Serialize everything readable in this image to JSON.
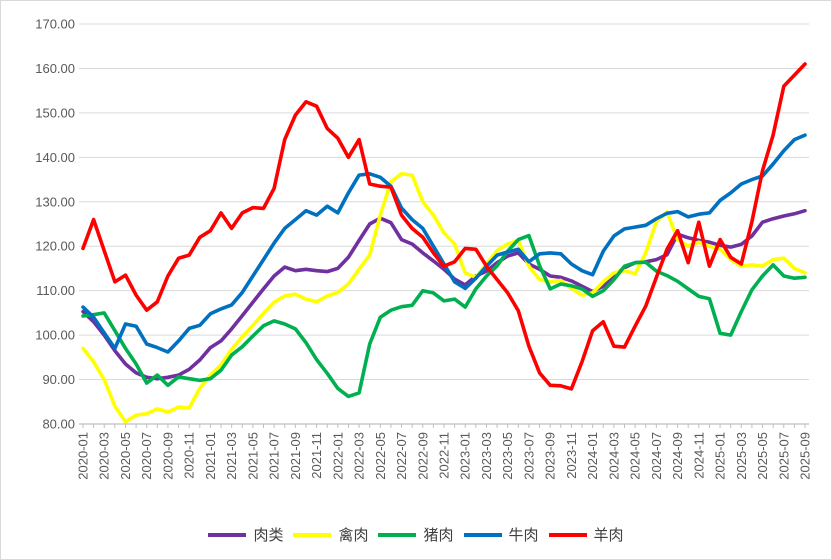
{
  "chart_data": {
    "type": "line",
    "title": "",
    "xlabel": "",
    "ylabel": "",
    "grid": true,
    "legend_position": "bottom",
    "y_min": 80,
    "y_max": 170,
    "y_step": 10,
    "y_tick_labels": [
      "170.00",
      "160.00",
      "150.00",
      "140.00",
      "130.00",
      "120.00",
      "110.00",
      "100.00",
      "90.00",
      "80.00"
    ],
    "x_label_every_n_months": 2,
    "axis_text_color": "#595959",
    "gridline_color": "#d9d9d9",
    "axis_line_color": "#bfbfbf",
    "x": [
      "2020-01",
      "2020-02",
      "2020-03",
      "2020-04",
      "2020-05",
      "2020-06",
      "2020-07",
      "2020-08",
      "2020-09",
      "2020-10",
      "2020-11",
      "2020-12",
      "2021-01",
      "2021-02",
      "2021-03",
      "2021-04",
      "2021-05",
      "2021-06",
      "2021-07",
      "2021-08",
      "2021-09",
      "2021-10",
      "2021-11",
      "2021-12",
      "2022-01",
      "2022-02",
      "2022-03",
      "2022-04",
      "2022-05",
      "2022-06",
      "2022-07",
      "2022-08",
      "2022-09",
      "2022-10",
      "2022-11",
      "2022-12",
      "2023-01",
      "2023-02",
      "2023-03",
      "2023-04",
      "2023-05",
      "2023-06",
      "2023-07",
      "2023-08",
      "2023-09",
      "2023-10",
      "2023-11",
      "2023-12",
      "2024-01",
      "2024-02",
      "2024-03",
      "2024-04",
      "2024-05",
      "2024-06",
      "2024-07",
      "2024-08",
      "2024-09",
      "2024-10",
      "2024-11",
      "2024-12",
      "2025-01",
      "2025-02",
      "2025-03",
      "2025-04",
      "2025-05",
      "2025-06",
      "2025-07",
      "2025-08",
      "2025-09"
    ],
    "series": [
      {
        "name": "肉类",
        "key": "meat",
        "color": "#7030A0",
        "values": [
          105.3,
          103.0,
          100.0,
          96.5,
          93.5,
          91.5,
          90.5,
          90.2,
          90.5,
          91.0,
          92.3,
          94.4,
          97.2,
          98.7,
          101.4,
          104.4,
          107.4,
          110.4,
          113.3,
          115.3,
          114.5,
          114.8,
          114.5,
          114.3,
          115.0,
          117.5,
          121.3,
          125.0,
          126.3,
          125.3,
          121.5,
          120.5,
          118.5,
          116.7,
          114.8,
          112.6,
          111.3,
          113.3,
          114.4,
          116.3,
          117.8,
          118.5,
          116.0,
          114.8,
          113.3,
          113.0,
          112.2,
          111.0,
          109.8,
          111.0,
          113.3,
          115.2,
          116.3,
          116.5,
          117.0,
          118.1,
          122.7,
          121.9,
          121.3,
          120.9,
          120.2,
          119.8,
          120.4,
          122.3,
          125.4,
          126.2,
          126.8,
          127.3,
          128.0
        ]
      },
      {
        "name": "禽肉",
        "key": "poultry",
        "color": "#FFFF00",
        "values": [
          97.0,
          94.0,
          90.0,
          84.0,
          80.5,
          82.0,
          82.3,
          83.4,
          82.7,
          83.8,
          83.6,
          88.0,
          91.0,
          93.3,
          96.8,
          99.6,
          102.2,
          104.9,
          107.4,
          108.8,
          109.2,
          108.1,
          107.5,
          108.8,
          109.6,
          111.5,
          114.8,
          118.0,
          127.0,
          134.5,
          136.3,
          136.0,
          130.0,
          127.0,
          123.0,
          120.5,
          114.0,
          113.0,
          116.0,
          119.0,
          120.5,
          121.3,
          115.5,
          112.5,
          112.0,
          112.3,
          110.5,
          109.0,
          109.5,
          112.0,
          114.0,
          114.5,
          113.8,
          118.5,
          125.5,
          127.7,
          121.5,
          120.0,
          120.9,
          120.0,
          119.3,
          117.0,
          115.5,
          115.8,
          115.5,
          117.0,
          117.3,
          115.0,
          114.0
        ]
      },
      {
        "name": "猪肉",
        "key": "pork",
        "color": "#00B050",
        "values": [
          104.3,
          104.6,
          105.0,
          101.0,
          97.0,
          93.5,
          89.2,
          91.0,
          88.7,
          90.6,
          90.2,
          89.8,
          90.2,
          92.1,
          95.5,
          97.4,
          99.8,
          102.1,
          103.2,
          102.5,
          101.4,
          98.3,
          94.5,
          91.4,
          88.0,
          86.2,
          87.0,
          98.0,
          104.0,
          105.6,
          106.4,
          106.7,
          110.0,
          109.5,
          107.7,
          108.1,
          106.3,
          110.4,
          113.3,
          115.6,
          118.9,
          121.5,
          122.4,
          115.6,
          110.4,
          111.5,
          111.1,
          110.4,
          108.7,
          110.0,
          112.5,
          115.5,
          116.3,
          116.4,
          114.4,
          113.4,
          112.1,
          110.4,
          108.7,
          108.2,
          100.4,
          100.0,
          105.3,
          110.2,
          113.3,
          115.8,
          113.3,
          112.8,
          113.0
        ]
      },
      {
        "name": "牛肉",
        "key": "beef",
        "color": "#0070C0",
        "values": [
          106.3,
          104.0,
          100.5,
          97.0,
          102.5,
          102.0,
          98.0,
          97.2,
          96.2,
          98.7,
          101.5,
          102.2,
          104.8,
          105.9,
          106.8,
          109.6,
          113.3,
          117.0,
          120.7,
          124.0,
          126.0,
          128.0,
          127.0,
          129.0,
          127.5,
          132.0,
          136.0,
          136.3,
          135.5,
          133.5,
          128.6,
          126.0,
          124.0,
          120.0,
          116.0,
          112.0,
          110.5,
          112.8,
          115.5,
          118.0,
          118.7,
          119.3,
          116.5,
          118.3,
          118.5,
          118.3,
          116.0,
          114.5,
          113.6,
          118.9,
          122.3,
          123.9,
          124.3,
          124.7,
          126.2,
          127.4,
          127.8,
          126.6,
          127.2,
          127.5,
          130.3,
          132.0,
          134.0,
          135.0,
          135.8,
          138.5,
          141.5,
          144.0,
          145.0
        ]
      },
      {
        "name": "羊肉",
        "key": "mutton",
        "color": "#FF0000",
        "values": [
          119.5,
          126.0,
          119.0,
          112.0,
          113.5,
          109.0,
          105.6,
          107.5,
          113.3,
          117.3,
          118.0,
          122.0,
          123.5,
          127.5,
          124.0,
          127.5,
          128.7,
          128.5,
          133.0,
          144.0,
          149.5,
          152.5,
          151.5,
          146.5,
          144.3,
          140.0,
          144.0,
          134.0,
          133.5,
          133.3,
          127.0,
          124.0,
          122.0,
          118.5,
          115.5,
          116.5,
          119.5,
          119.3,
          115.5,
          112.5,
          109.5,
          105.5,
          97.5,
          91.5,
          88.7,
          88.6,
          87.9,
          94.0,
          101.0,
          103.0,
          97.5,
          97.3,
          102.0,
          106.5,
          113.0,
          119.3,
          123.5,
          116.3,
          125.4,
          115.5,
          121.5,
          117.5,
          116.0,
          125.5,
          137.0,
          145.0,
          156.0,
          158.5,
          161.0
        ]
      }
    ],
    "legend": [
      "肉类",
      "禽肉",
      "猪肉",
      "牛肉",
      "羊肉"
    ]
  }
}
